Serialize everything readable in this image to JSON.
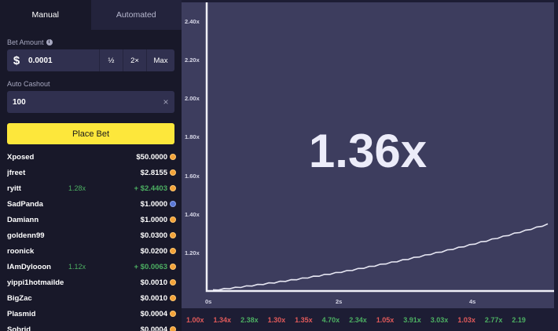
{
  "tabs": {
    "manual": "Manual",
    "automated": "Automated"
  },
  "bet_amount": {
    "label": "Bet Amount",
    "currency": "$",
    "value": "0.0001",
    "half": "½",
    "double": "2×",
    "max": "Max"
  },
  "auto_cashout": {
    "label": "Auto Cashout",
    "value": "100",
    "clear": "×"
  },
  "place_bet": "Place Bet",
  "players": [
    {
      "name": "Xposed",
      "cashout": "",
      "amount": "$50.0000",
      "coin": "btc",
      "won": false
    },
    {
      "name": "jfreet",
      "cashout": "",
      "amount": "$2.8155",
      "coin": "btc",
      "won": false
    },
    {
      "name": "ryitt",
      "cashout": "1.28x",
      "amount": "+ $2.4403",
      "coin": "btc",
      "won": true
    },
    {
      "name": "SadPanda",
      "cashout": "",
      "amount": "$1.0000",
      "coin": "alt",
      "won": false
    },
    {
      "name": "Damiann",
      "cashout": "",
      "amount": "$1.0000",
      "coin": "btc",
      "won": false
    },
    {
      "name": "goldenn99",
      "cashout": "",
      "amount": "$0.0300",
      "coin": "btc",
      "won": false
    },
    {
      "name": "roonick",
      "cashout": "",
      "amount": "$0.0200",
      "coin": "btc",
      "won": false
    },
    {
      "name": "IAmDylooon",
      "cashout": "1.12x",
      "amount": "+ $0.0063",
      "coin": "btc",
      "won": true
    },
    {
      "name": "yippi1hotmailde",
      "cashout": "",
      "amount": "$0.0010",
      "coin": "btc",
      "won": false
    },
    {
      "name": "BigZac",
      "cashout": "",
      "amount": "$0.0010",
      "coin": "btc",
      "won": false
    },
    {
      "name": "Plasmid",
      "cashout": "",
      "amount": "$0.0004",
      "coin": "btc",
      "won": false
    },
    {
      "name": "Sobrid",
      "cashout": "",
      "amount": "$0.0004",
      "coin": "btc",
      "won": false
    }
  ],
  "graph": {
    "multiplier": "1.36x",
    "y_ticks": [
      "1.20x",
      "1.40x",
      "1.60x",
      "1.80x",
      "2.00x",
      "2.20x",
      "2.40x"
    ],
    "x_ticks": [
      "0s",
      "2s",
      "4s"
    ],
    "curve_color": "#e6e6f2",
    "background_color": "#3d3d5e"
  },
  "history": [
    {
      "value": "1.00x",
      "level": "low"
    },
    {
      "value": "1.34x",
      "level": "low"
    },
    {
      "value": "2.38x",
      "level": "high"
    },
    {
      "value": "1.30x",
      "level": "low"
    },
    {
      "value": "1.35x",
      "level": "low"
    },
    {
      "value": "4.70x",
      "level": "high"
    },
    {
      "value": "2.34x",
      "level": "high"
    },
    {
      "value": "1.05x",
      "level": "low"
    },
    {
      "value": "3.91x",
      "level": "high"
    },
    {
      "value": "3.03x",
      "level": "high"
    },
    {
      "value": "1.03x",
      "level": "low"
    },
    {
      "value": "2.77x",
      "level": "high"
    },
    {
      "value": "2.19",
      "level": "high"
    }
  ]
}
